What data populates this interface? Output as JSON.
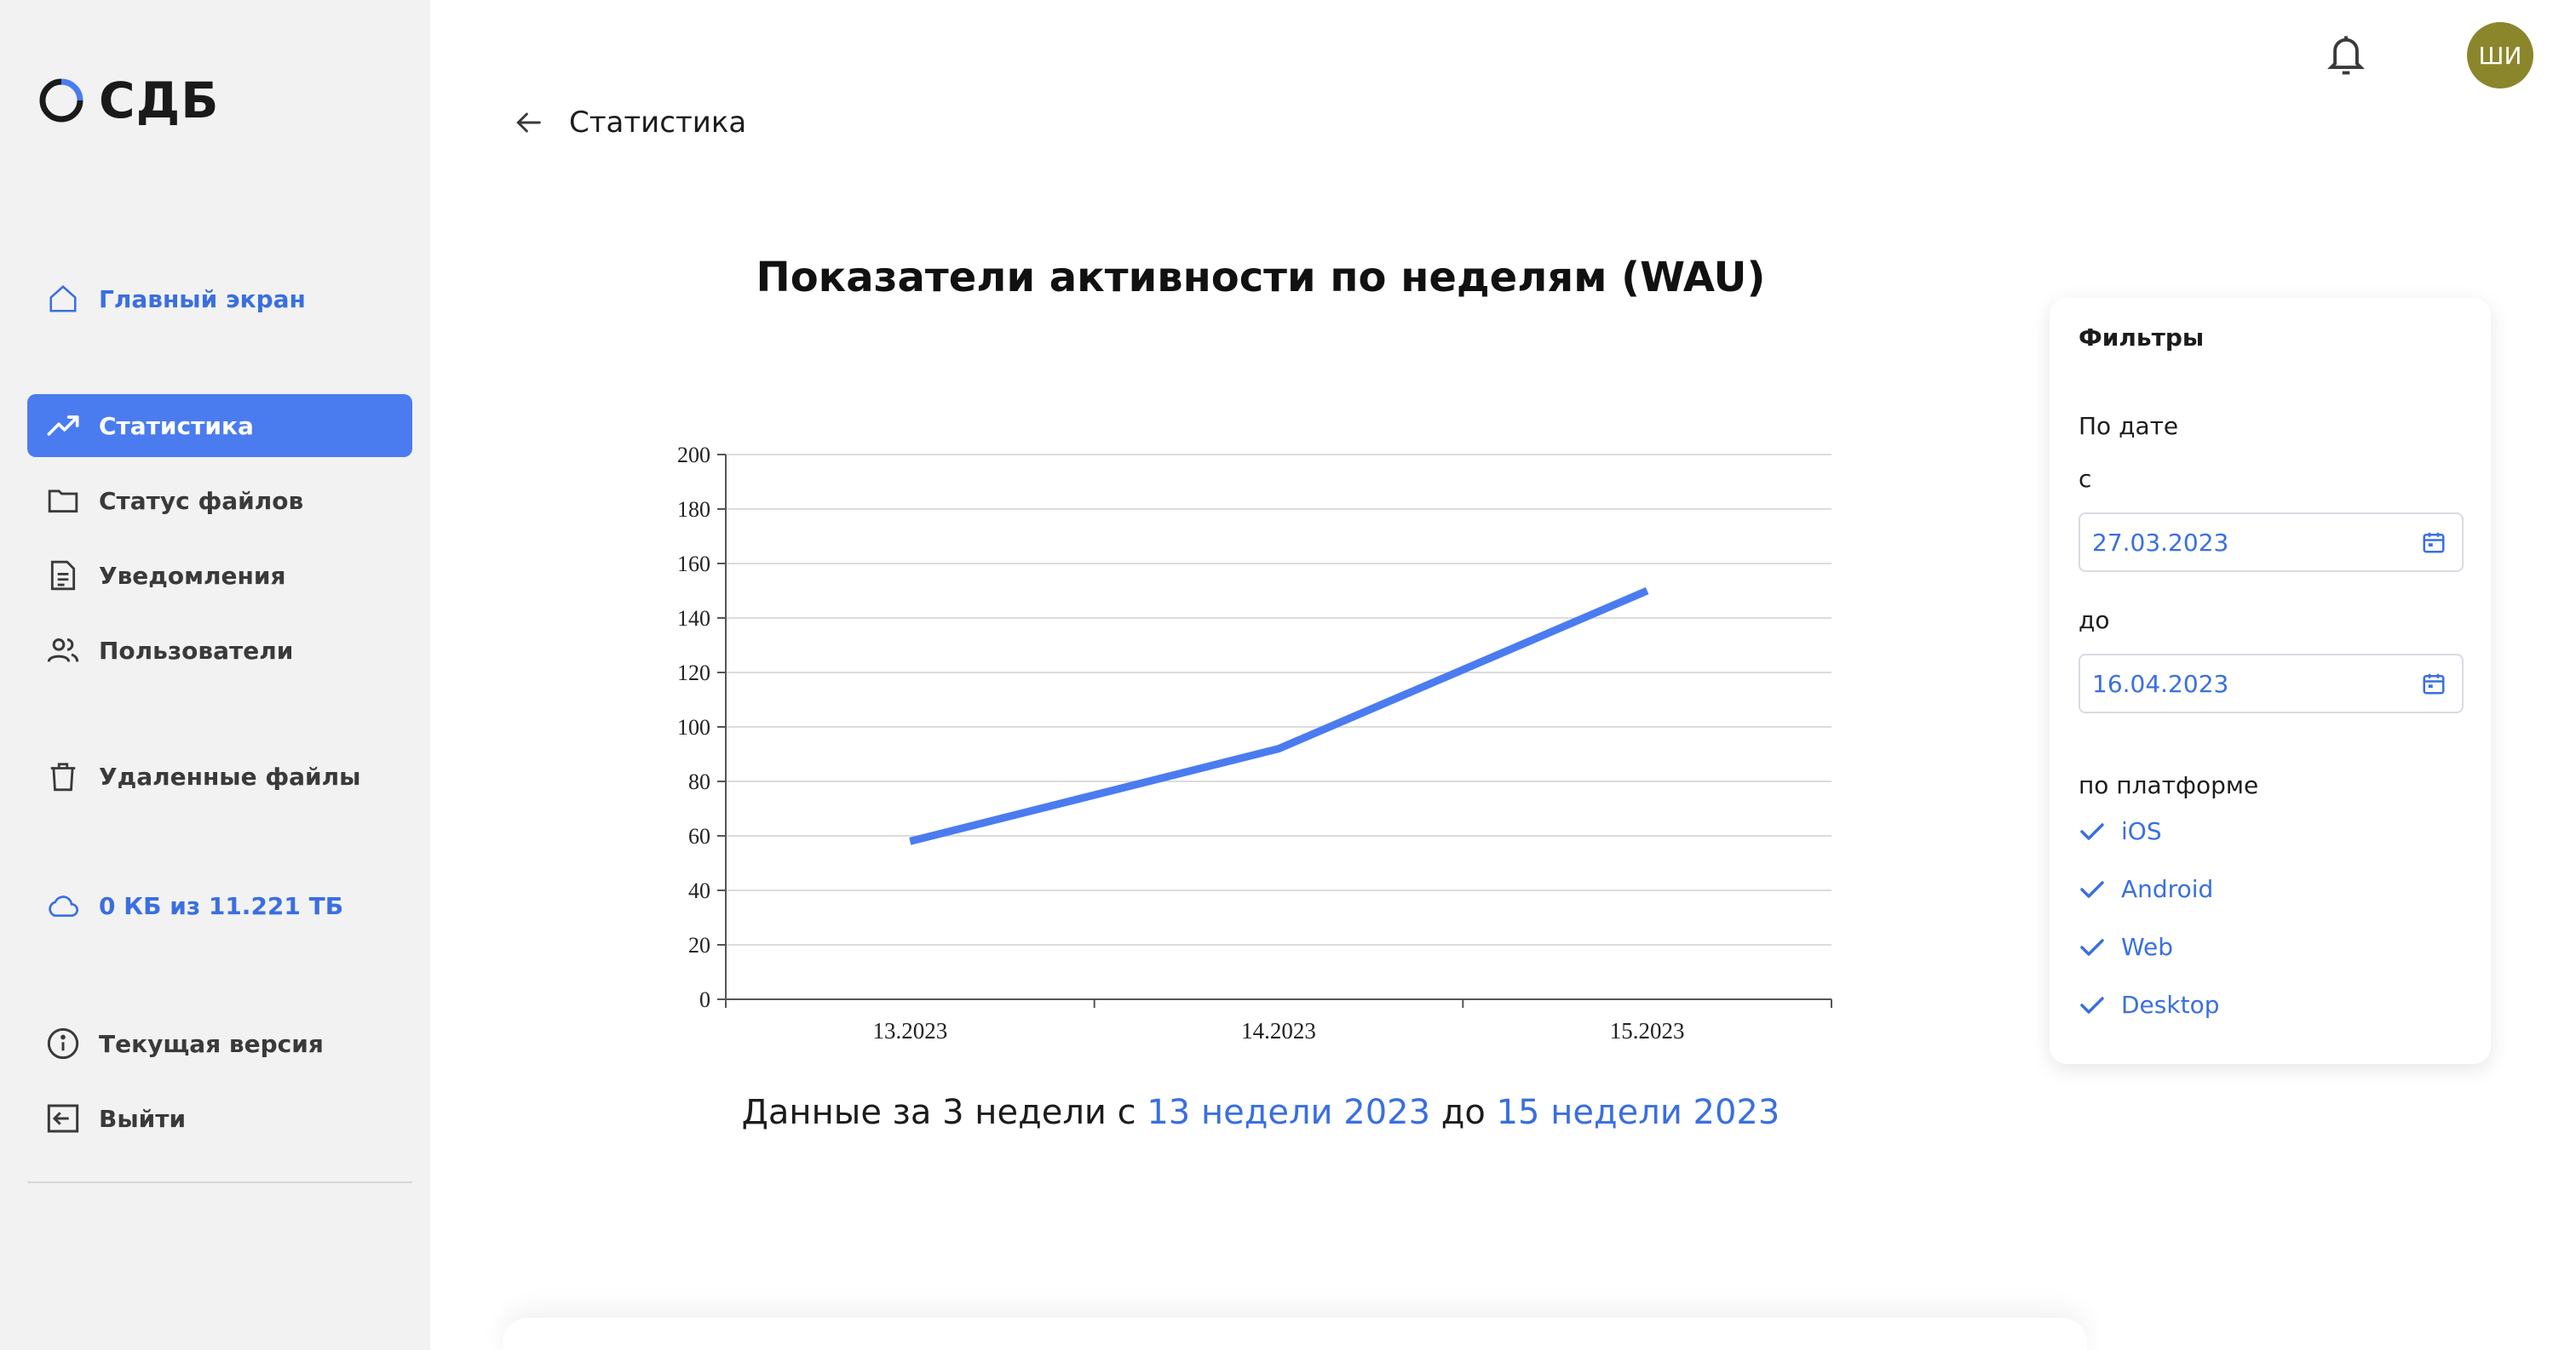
{
  "app": {
    "logo_text": "СДБ"
  },
  "sidebar": {
    "items": [
      {
        "label": "Главный экран",
        "icon": "home-icon"
      },
      {
        "label": "Статистика",
        "icon": "trending-up-icon"
      },
      {
        "label": "Статус файлов",
        "icon": "folder-icon"
      },
      {
        "label": "Уведомления",
        "icon": "document-icon"
      },
      {
        "label": "Пользователи",
        "icon": "users-icon"
      },
      {
        "label": "Удаленные файлы",
        "icon": "trash-icon"
      },
      {
        "label": "0 КБ из 11.221 ТБ",
        "icon": "cloud-icon"
      },
      {
        "label": "Текущая версия",
        "icon": "info-icon"
      },
      {
        "label": "Выйти",
        "icon": "logout-icon"
      }
    ],
    "active_item": "Статистика",
    "accent": "#4a7cf0"
  },
  "header": {
    "title": "Статистика",
    "avatar_initials": "ШИ",
    "avatar_color": "#8b862b"
  },
  "chart": {
    "summary_prefix": "Данные за 3 недели с ",
    "summary_from": "13 недели 2023",
    "summary_mid": " до ",
    "summary_to": "15 недели 2023"
  },
  "chart_data": {
    "type": "line",
    "title": "Показатели активности по неделям (WAU)",
    "categories": [
      "13.2023",
      "14.2023",
      "15.2023"
    ],
    "values": [
      58,
      92,
      150
    ],
    "ylim": [
      0,
      200
    ],
    "yticks": [
      "0",
      "20",
      "40",
      "60",
      "80",
      "100",
      "120",
      "140",
      "160",
      "180",
      "200"
    ],
    "grid": true,
    "line_color": "#4a7cf0"
  },
  "filters": {
    "title": "Фильтры",
    "by_date": "По дате",
    "from_label": "с",
    "from_value": "27.03.2023",
    "to_label": "до",
    "to_value": "16.04.2023",
    "by_platform": "по платформе",
    "platforms": [
      "iOS",
      "Android",
      "Web",
      "Desktop"
    ]
  }
}
